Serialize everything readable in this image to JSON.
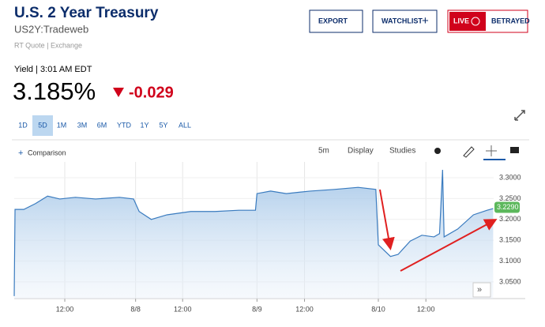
{
  "header": {
    "title": "U.S. 2 Year Treasury",
    "symbol": "US2Y:Tradeweb",
    "source": "RT Quote | Exchange",
    "buttons": [
      "EXPORT",
      "WATCHLIST",
      "LIVE",
      "BETRAYED"
    ]
  },
  "quote": {
    "label": "Yield | 3:01 AM EDT",
    "price": "3.185%",
    "change": "-0.029"
  },
  "ranges": {
    "items": [
      "1D",
      "5D",
      "1M",
      "3M",
      "6M",
      "YTD",
      "1Y",
      "5Y",
      "ALL"
    ],
    "selected": "5D"
  },
  "toolbar": {
    "comparison": "Comparison",
    "interval": "5m",
    "display": "Display",
    "studies": "Studies"
  },
  "chart_data": {
    "type": "line",
    "x": [
      0,
      0.16,
      1.9,
      4.2,
      6.6,
      9.0,
      12.1,
      16.1,
      20.8,
      23.6,
      24.7,
      27.1,
      30.2,
      34.9,
      39.7,
      44.4,
      47.7,
      48.0,
      50.7,
      53.8,
      58.5,
      63.3,
      68.0,
      71.5,
      72.0,
      74.4,
      75.9,
      78.3,
      80.6,
      83.0,
      84.1,
      84.7,
      85.0,
      87.7,
      90.8,
      93.5,
      94.7
    ],
    "series": [
      {
        "color": "#3a7bbf",
        "values": [
          3.016,
          3.224,
          3.224,
          3.238,
          3.256,
          3.249,
          3.253,
          3.249,
          3.253,
          3.249,
          3.219,
          3.2,
          3.211,
          3.219,
          3.219,
          3.222,
          3.222,
          3.262,
          3.268,
          3.262,
          3.268,
          3.272,
          3.277,
          3.272,
          3.139,
          3.111,
          3.116,
          3.148,
          3.162,
          3.158,
          3.166,
          3.319,
          3.158,
          3.177,
          3.211,
          3.222,
          3.226
        ]
      }
    ],
    "xlim": [
      0,
      94.8
    ],
    "xticks": [
      {
        "value": 10,
        "label": "12:00"
      },
      {
        "value": 24,
        "label": "8/8"
      },
      {
        "value": 33.3,
        "label": "12:00"
      },
      {
        "value": 48,
        "label": "8/9"
      },
      {
        "value": 57.4,
        "label": "12:00"
      },
      {
        "value": 72,
        "label": "8/10"
      },
      {
        "value": 81.4,
        "label": "12:00"
      }
    ],
    "ylim": [
      3.01,
      3.338
    ],
    "yticks": [
      {
        "value": 3.05,
        "label": "3.0500"
      },
      {
        "value": 3.1,
        "label": "3.1000"
      },
      {
        "value": 3.15,
        "label": "3.1500"
      },
      {
        "value": 3.2,
        "label": "3.2000"
      },
      {
        "value": 3.25,
        "label": "3.2500"
      },
      {
        "value": 3.3,
        "label": "3.3000"
      }
    ],
    "last": {
      "value": 3.229,
      "label": "3.2290",
      "color": "#5cb85c"
    },
    "grid": true
  }
}
